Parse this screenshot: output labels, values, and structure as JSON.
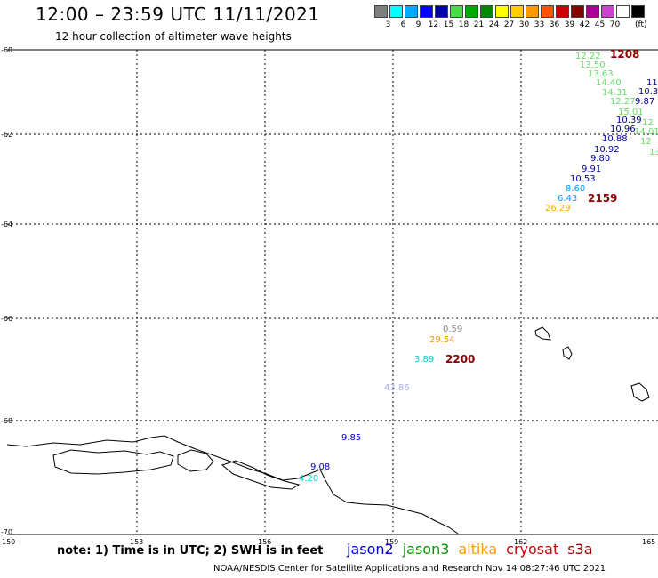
{
  "header": {
    "title": "12:00 – 23:59 UTC 11/11/2021",
    "subtitle": "12 hour collection of altimeter wave heights"
  },
  "scale": {
    "colors": [
      "#7f7f7f",
      "#00ffff",
      "#00aaff",
      "#0000ff",
      "#0000b0",
      "#44dd44",
      "#00aa00",
      "#008800",
      "#ffff00",
      "#ffcc00",
      "#ff9900",
      "#ff5500",
      "#cc0000",
      "#880000",
      "#aa0099",
      "#cc44cc",
      "#ffffff",
      "#000000"
    ],
    "labels": [
      "3",
      "6",
      "9",
      "12",
      "15",
      "18",
      "21",
      "24",
      "27",
      "30",
      "33",
      "36",
      "39",
      "42",
      "45",
      "70"
    ],
    "unit": "(ft)"
  },
  "map": {
    "lat_labels": [
      "-60",
      "-62",
      "-64",
      "-66",
      "-68",
      "-70"
    ],
    "lon_labels": [
      "150",
      "153",
      "156",
      "159",
      "162",
      "165"
    ],
    "observations": [
      {
        "text": "12.22",
        "color": "#66dd66"
      },
      {
        "text": "13.50",
        "color": "#66dd66"
      },
      {
        "text": "13.63",
        "color": "#66dd66"
      },
      {
        "text": "14.40",
        "color": "#66dd66"
      },
      {
        "text": "14.31",
        "color": "#66dd66"
      },
      {
        "text": "12.27",
        "color": "#66dd66"
      },
      {
        "text": "15.01",
        "color": "#66dd66"
      },
      {
        "text": "14.01",
        "color": "#66dd66"
      },
      {
        "text": "12",
        "color": "#66dd66"
      },
      {
        "text": "12",
        "color": "#66dd66"
      },
      {
        "text": "13",
        "color": "#66dd66"
      },
      {
        "text": "11",
        "color": "#000099"
      },
      {
        "text": "10.3",
        "color": "#000099"
      },
      {
        "text": "9.87",
        "color": "#000099"
      },
      {
        "text": "10.39",
        "color": "#000099"
      },
      {
        "text": "10.96",
        "color": "#000099"
      },
      {
        "text": "10.88",
        "color": "#000099"
      },
      {
        "text": "10.92",
        "color": "#000099"
      },
      {
        "text": "9.80",
        "color": "#000099"
      },
      {
        "text": "9.91",
        "color": "#000099"
      },
      {
        "text": "10.53",
        "color": "#000099"
      },
      {
        "text": "8.60",
        "color": "#0099ff"
      },
      {
        "text": "6.43",
        "color": "#0099ff"
      },
      {
        "text": "26.29",
        "color": "#ffaa00"
      },
      {
        "text": "0.59",
        "color": "#888888"
      },
      {
        "text": "29.54",
        "color": "#ee9900"
      },
      {
        "text": "3.89",
        "color": "#00cccc"
      },
      {
        "text": "43.86",
        "color": "#aaaaee"
      },
      {
        "text": "9.85",
        "color": "#0000cc"
      },
      {
        "text": "9.08",
        "color": "#0000cc"
      },
      {
        "text": "4.20",
        "color": "#00cccc"
      }
    ],
    "times": [
      "1208",
      "2159",
      "2200"
    ]
  },
  "note": "note:  1) Time is in UTC;  2) SWH is in feet",
  "legend": [
    {
      "name": "jason2",
      "color": "#0000cc"
    },
    {
      "name": "jason3",
      "color": "#009900"
    },
    {
      "name": "altika",
      "color": "#ff9900"
    },
    {
      "name": "cryosat",
      "color": "#cc0000"
    },
    {
      "name": "s3a",
      "color": "#990000"
    }
  ],
  "footer": "NOAA/NESDIS Center for Satellite Applications and Research     Nov 14 08:27:46 UTC 2021"
}
